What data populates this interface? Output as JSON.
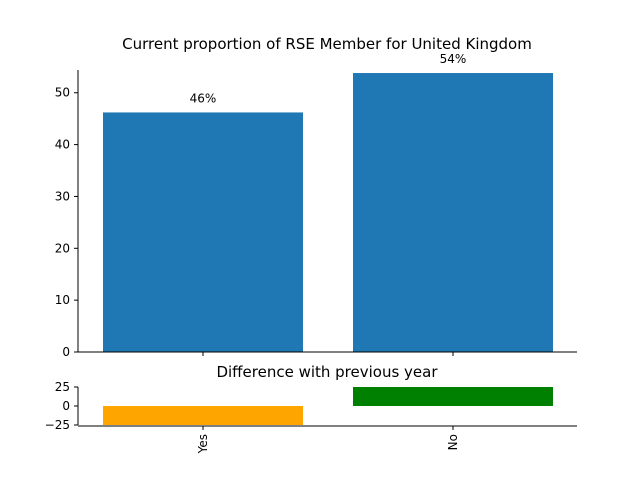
{
  "chart_data": [
    {
      "type": "bar",
      "title": "Current proportion of RSE Member for United Kingdom",
      "categories": [
        "Yes",
        "No"
      ],
      "values": [
        46.2,
        53.8
      ],
      "data_labels": [
        "46%",
        "54%"
      ],
      "ylim": [
        0,
        54
      ],
      "yticks": [
        0,
        10,
        20,
        30,
        40,
        50
      ],
      "bar_color": "#1f77b4",
      "xlabel": "",
      "ylabel": "",
      "grid": false
    },
    {
      "type": "bar",
      "title": "Difference with previous year",
      "categories": [
        "Yes",
        "No"
      ],
      "values": [
        -25,
        25
      ],
      "ylim": [
        -25,
        25
      ],
      "yticks": [
        -25,
        0,
        25
      ],
      "ytick_labels": [
        "−25",
        "0",
        "25"
      ],
      "bar_colors": [
        "#ffa500",
        "#008000"
      ],
      "xlabel": "",
      "ylabel": "",
      "grid": false
    }
  ]
}
